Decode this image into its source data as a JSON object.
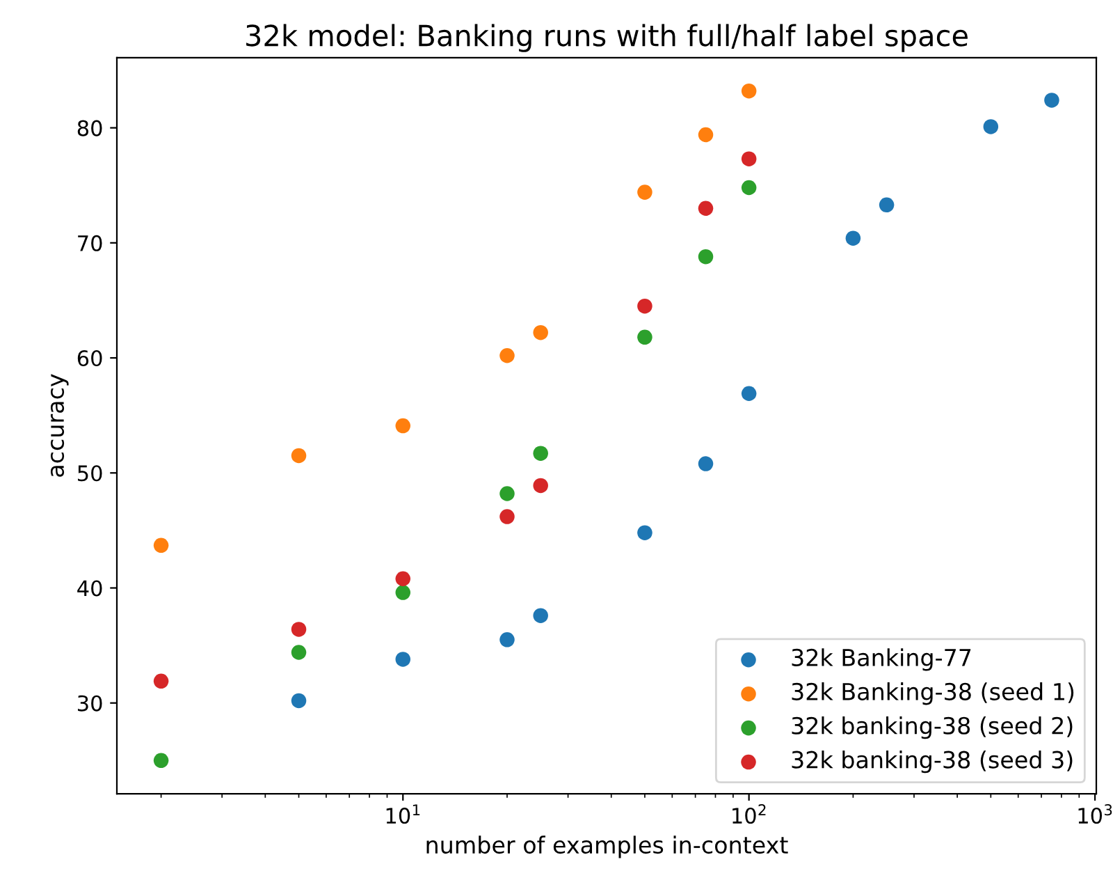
{
  "chart_data": {
    "type": "scatter",
    "title": "32k model: Banking runs with full/half label space",
    "xlabel": "number of examples in-context",
    "ylabel": "accuracy",
    "log": "x",
    "xlim": [
      1.49,
      1009
    ],
    "xticks": [
      {
        "value": 10,
        "label": "10$^{1}$"
      },
      {
        "value": 100,
        "label": "10$^{2}$"
      },
      {
        "value": 1000,
        "label": "10$^{3}$"
      }
    ],
    "ylim": [
      22.1,
      86.1
    ],
    "yticks": [
      30,
      40,
      50,
      60,
      70,
      80
    ],
    "grid": false,
    "legend": "bottom right",
    "marker": "circle",
    "series": [
      {
        "name": "32k Banking-77",
        "color": "#1f77b4",
        "x": [
          5,
          10,
          20,
          25,
          50,
          75,
          100,
          200,
          250,
          500,
          750
        ],
        "values": [
          30.2,
          33.8,
          35.5,
          37.6,
          44.8,
          50.8,
          56.9,
          70.4,
          73.3,
          80.1,
          82.4
        ]
      },
      {
        "name": "32k Banking-38 (seed 1)",
        "color": "#ff7f0e",
        "x": [
          2,
          5,
          10,
          20,
          25,
          50,
          75,
          100
        ],
        "values": [
          43.7,
          51.5,
          54.1,
          60.2,
          62.2,
          74.4,
          79.4,
          83.2
        ]
      },
      {
        "name": "32k banking-38 (seed 2)",
        "color": "#2ca02c",
        "x": [
          2,
          5,
          10,
          20,
          25,
          50,
          75,
          100
        ],
        "values": [
          25.0,
          34.4,
          39.6,
          48.2,
          51.7,
          61.8,
          68.8,
          74.8
        ]
      },
      {
        "name": "32k banking-38 (seed 3)",
        "color": "#d62728",
        "x": [
          2,
          5,
          10,
          20,
          25,
          50,
          75,
          100
        ],
        "values": [
          31.9,
          36.4,
          40.8,
          46.2,
          48.9,
          64.5,
          73.0,
          77.3
        ]
      }
    ]
  }
}
